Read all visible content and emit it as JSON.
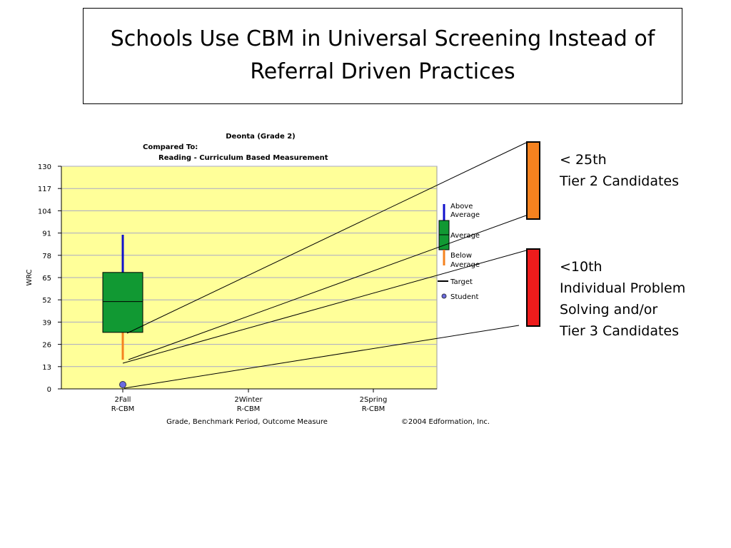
{
  "slide": {
    "title_line1": "Schools Use CBM in Universal Screening Instead of",
    "title_line2": "Referral Driven Practices"
  },
  "annotations": {
    "tier2": {
      "line1": "< 25th",
      "line2": "Tier 2 Candidates",
      "color": "#f5821f"
    },
    "tier3": {
      "line1": "<10th",
      "line2": "Individual Problem",
      "line3": "Solving and/or",
      "line4": "Tier 3 Candidates",
      "color": "#ee1c1c"
    }
  },
  "chart_data": {
    "type": "box",
    "title": "Deonta (Grade 2)",
    "subtitle1": "Compared To:",
    "subtitle2": "Reading - Curriculum Based Measurement",
    "ylabel": "WRC",
    "xlabel": "Grade, Benchmark Period, Outcome Measure",
    "copyright": "©2004 Edformation, Inc.",
    "ylim": [
      0,
      130
    ],
    "yticks": [
      0,
      13,
      26,
      39,
      52,
      65,
      78,
      91,
      104,
      117,
      130
    ],
    "grid": true,
    "plot_bg": "#ffff99",
    "categories": [
      {
        "line1": "2Fall",
        "line2": "R-CBM"
      },
      {
        "line1": "2Winter",
        "line2": "R-CBM"
      },
      {
        "line1": "2Spring",
        "line2": "R-CBM"
      }
    ],
    "boxes": [
      {
        "category": 0,
        "above_top": 90,
        "box_top": 68,
        "median": 51,
        "box_bottom": 33,
        "below_bottom": 17,
        "student": 2.5
      }
    ],
    "colors": {
      "above": "#1010cc",
      "average": "#119933",
      "below": "#f5821f",
      "target": "#000000",
      "student": "#6a6ae0"
    },
    "legend": {
      "placement": "right",
      "above_l1": "Above",
      "above_l2": "Average",
      "average": "Average",
      "below_l1": "Below",
      "below_l2": "Average",
      "target": "Target",
      "student": "Student"
    }
  }
}
